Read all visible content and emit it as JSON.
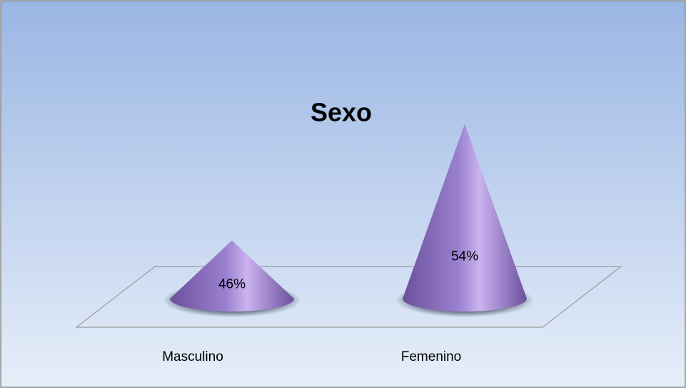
{
  "chart_data": {
    "type": "cone",
    "title": "Sexo",
    "categories": [
      "Masculino",
      "Femenino"
    ],
    "values": [
      46,
      54
    ],
    "value_labels": [
      "46%",
      "54%"
    ],
    "color": "#9277c4",
    "ylim": [
      42,
      55
    ]
  }
}
